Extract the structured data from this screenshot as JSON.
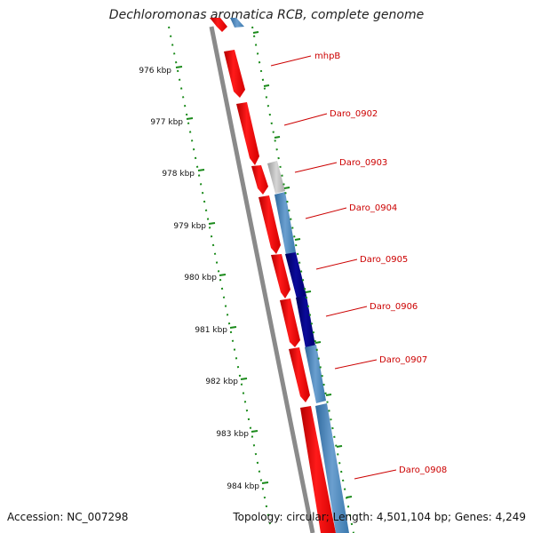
{
  "title": "Dechloromonas aromatica RCB, complete genome",
  "footer": {
    "accession": "Accession: NC_007298",
    "summary": "Topology: circular; Length: 4,501,104 bp; Genes: 4,249"
  },
  "colors": {
    "forward_gene": "#ff0000",
    "reverse_gene": "#4682b4",
    "reverse_gene_dark": "#000080",
    "pseudo_gene": "#bdbdbd",
    "backbone": "#8a8a8a",
    "ticks": "#1a8a1a",
    "labels": "#cc0000"
  },
  "scale_ticks": [
    {
      "label": "976 kbp"
    },
    {
      "label": "977 kbp"
    },
    {
      "label": "978 kbp"
    },
    {
      "label": "979 kbp"
    },
    {
      "label": "980 kbp"
    },
    {
      "label": "981 kbp"
    },
    {
      "label": "982 kbp"
    },
    {
      "label": "983 kbp"
    },
    {
      "label": "984 kbp"
    }
  ],
  "gene_labels": [
    {
      "label": "mhpB"
    },
    {
      "label": "Daro_0902"
    },
    {
      "label": "Daro_0903"
    },
    {
      "label": "Daro_0904"
    },
    {
      "label": "Daro_0905"
    },
    {
      "label": "Daro_0906"
    },
    {
      "label": "Daro_0907"
    },
    {
      "label": "Daro_0908"
    }
  ]
}
